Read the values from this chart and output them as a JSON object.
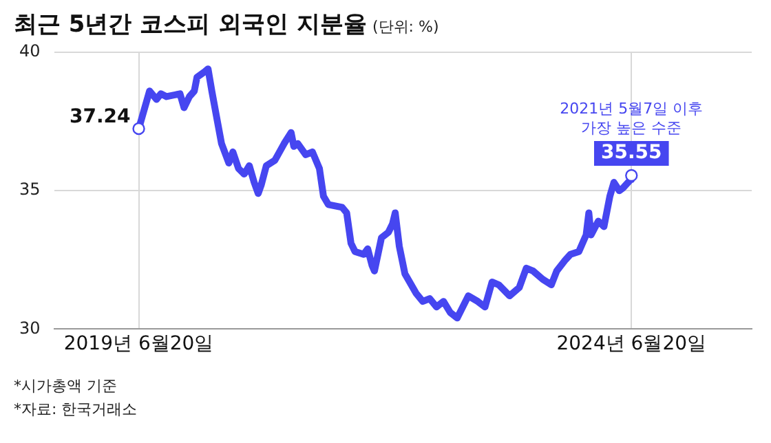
{
  "chart_data": {
    "type": "line",
    "title": "최근 5년간 코스피 외국인 지분율",
    "subtitle": "(단위: %)",
    "x": [
      "2019-06-20",
      "2019-07-30",
      "2019-08-25",
      "2019-09-10",
      "2019-10-01",
      "2019-11-20",
      "2019-12-05",
      "2019-12-25",
      "2020-01-12",
      "2020-01-22",
      "2020-02-20",
      "2020-03-03",
      "2020-03-17",
      "2020-04-03",
      "2020-04-22",
      "2020-05-19",
      "2020-06-03",
      "2020-06-24",
      "2020-07-15",
      "2020-08-03",
      "2020-08-21",
      "2020-09-05",
      "2020-09-16",
      "2020-10-05",
      "2020-11-06",
      "2020-12-10",
      "2021-01-05",
      "2021-01-15",
      "2021-01-30",
      "2021-02-28",
      "2021-03-25",
      "2021-04-20",
      "2021-05-05",
      "2021-05-23",
      "2021-07-13",
      "2021-07-30",
      "2021-08-15",
      "2021-08-30",
      "2021-10-01",
      "2021-10-16",
      "2021-11-01",
      "2021-11-10",
      "2021-12-06",
      "2022-01-01",
      "2022-01-16",
      "2022-01-26",
      "2022-02-10",
      "2022-03-03",
      "2022-04-13",
      "2022-05-08",
      "2022-06-03",
      "2022-06-28",
      "2022-07-24",
      "2022-08-18",
      "2022-09-13",
      "2022-10-24",
      "2022-11-28",
      "2022-12-25",
      "2023-01-20",
      "2023-02-14",
      "2023-03-26",
      "2023-05-01",
      "2023-05-27",
      "2023-06-21",
      "2023-07-27",
      "2023-08-28",
      "2023-09-17",
      "2023-10-19",
      "2023-11-07",
      "2023-12-08",
      "2024-01-04",
      "2024-01-14",
      "2024-01-22",
      "2024-02-18",
      "2024-03-10",
      "2024-04-01",
      "2024-04-16",
      "2024-05-06",
      "2024-05-20",
      "2024-06-17",
      "2024-06-20"
    ],
    "series": [
      {
        "color": "#4646f0",
        "values": [
          37.24,
          38.6,
          38.3,
          38.5,
          38.4,
          38.5,
          38.0,
          38.4,
          38.6,
          39.1,
          39.3,
          39.4,
          38.6,
          37.7,
          36.7,
          36.0,
          36.4,
          35.8,
          35.6,
          35.9,
          35.3,
          34.9,
          35.2,
          35.9,
          36.1,
          36.7,
          37.1,
          36.6,
          36.7,
          36.3,
          36.4,
          35.8,
          34.8,
          34.5,
          34.4,
          34.2,
          33.1,
          32.8,
          32.7,
          32.9,
          32.3,
          32.1,
          33.3,
          33.5,
          33.8,
          34.2,
          33.0,
          32.0,
          31.3,
          31.0,
          31.1,
          30.8,
          31.0,
          30.6,
          30.4,
          31.2,
          31.0,
          30.8,
          31.7,
          31.6,
          31.2,
          31.5,
          32.2,
          32.1,
          31.8,
          31.6,
          32.1,
          32.5,
          32.7,
          32.8,
          33.4,
          34.2,
          33.4,
          33.9,
          33.7,
          34.8,
          35.3,
          35.0,
          35.1,
          35.4,
          35.55
        ],
        "value_labels": [
          "37.24",
          null,
          null,
          null,
          null,
          null,
          null,
          null,
          null,
          null,
          null,
          null,
          null,
          null,
          null,
          null,
          null,
          null,
          null,
          null,
          null,
          null,
          null,
          null,
          null,
          null,
          null,
          null,
          null,
          null,
          null,
          null,
          null,
          null,
          null,
          null,
          null,
          null,
          null,
          null,
          null,
          null,
          null,
          null,
          null,
          null,
          null,
          null,
          null,
          null,
          null,
          null,
          null,
          null,
          null,
          null,
          null,
          null,
          null,
          null,
          null,
          null,
          null,
          null,
          null,
          null,
          null,
          null,
          null,
          null,
          null,
          null,
          null,
          null,
          null,
          null,
          null,
          null,
          null,
          null,
          "35.55"
        ]
      }
    ],
    "xlim": [
      "2018-08-10",
      "2025-09-09"
    ],
    "xticks": [
      {
        "value": "2019-06-20",
        "label": "2019년 6월20일"
      },
      {
        "value": "2024-06-20",
        "label": "2024년 6월20일"
      }
    ],
    "ylim": [
      30,
      40
    ],
    "yticks": [
      30,
      35,
      40
    ],
    "grid": true,
    "legend": false,
    "annotations": [
      {
        "text": "2021년 5월7일 이후\n가장 높은 수준",
        "x": "2024-06-20",
        "y": 35.55
      },
      "*시가총액 기준",
      "*자료: 한국거래소"
    ]
  }
}
